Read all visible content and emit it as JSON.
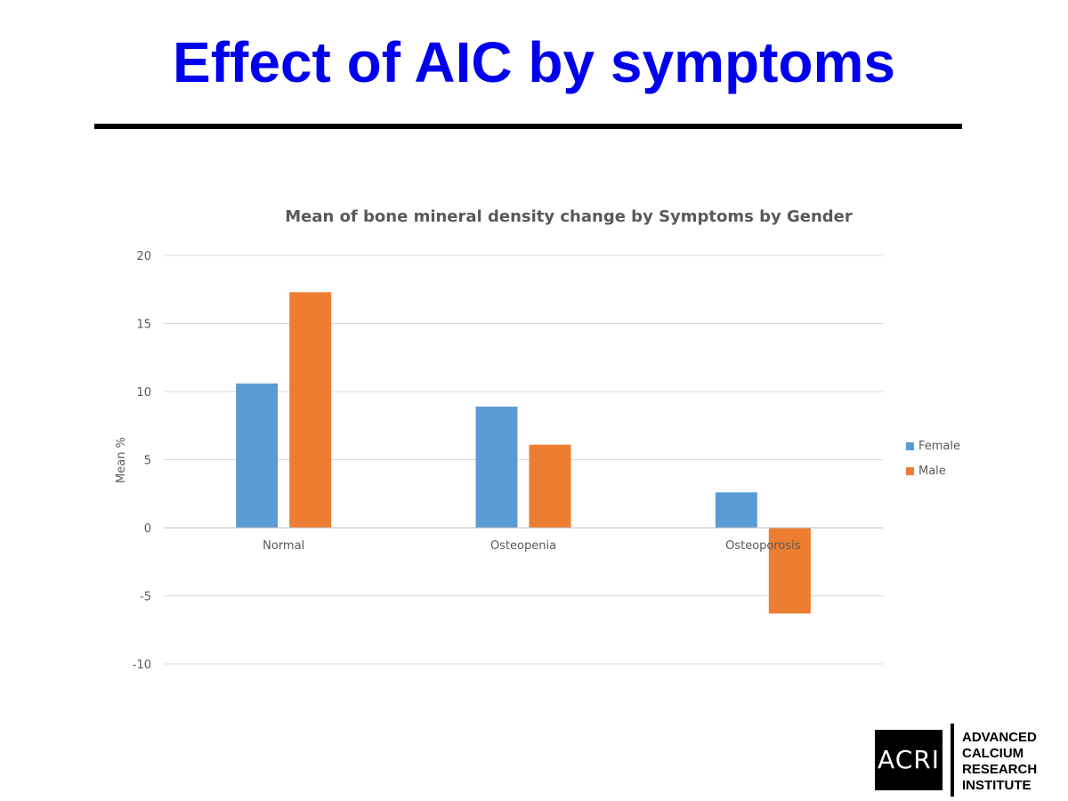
{
  "slide": {
    "title": "Effect of AIC by symptoms",
    "title_color": "#0000ee"
  },
  "logo": {
    "mark": "ACRI",
    "name_lines": [
      "ADVANCED",
      "CALCIUM",
      "RESEARCH",
      "INSTITUTE"
    ]
  },
  "chart_data": {
    "type": "bar",
    "title": "Mean of bone mineral density change by Symptoms by Gender",
    "xlabel": "",
    "ylabel": "Mean %",
    "categories": [
      "Normal",
      "Osteopenia",
      "Osteoporosis"
    ],
    "series": [
      {
        "name": "Female",
        "color": "#5b9bd5",
        "values": [
          10.6,
          8.9,
          2.6
        ]
      },
      {
        "name": "Male",
        "color": "#ed7d31",
        "values": [
          17.3,
          6.1,
          -6.3
        ]
      }
    ],
    "ylim": [
      -10,
      20
    ],
    "yticks": [
      20,
      15,
      10,
      5,
      0,
      -5,
      -10
    ],
    "grid": true,
    "legend_position": "right"
  }
}
